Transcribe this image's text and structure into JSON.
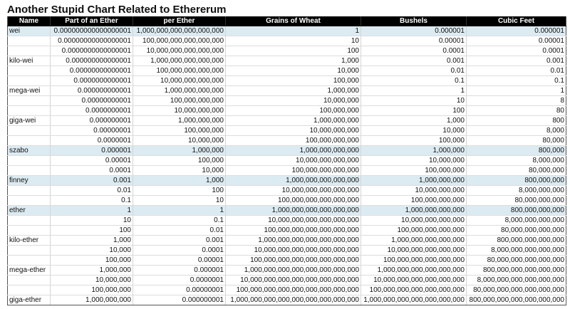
{
  "title": "Another Stupid Chart Related to Ethererum",
  "table": {
    "columns": [
      "Name",
      "Part of an Ether",
      "per Ether",
      "Grains of Wheat",
      "Bushels",
      "Cubic Feet"
    ],
    "rows": [
      {
        "name": "wei",
        "part": "0.000000000000000001",
        "per": "1,000,000,000,000,000,000",
        "grains": "1",
        "bushels": "0.000001",
        "cubic": "0.000001",
        "highlight": true
      },
      {
        "name": "",
        "part": "0.00000000000000001",
        "per": "100,000,000,000,000,000",
        "grains": "10",
        "bushels": "0.00001",
        "cubic": "0.00001",
        "highlight": false
      },
      {
        "name": "",
        "part": "0.0000000000000001",
        "per": "10,000,000,000,000,000",
        "grains": "100",
        "bushels": "0.0001",
        "cubic": "0.0001",
        "highlight": false
      },
      {
        "name": "kilo-wei",
        "part": "0.000000000000001",
        "per": "1,000,000,000,000,000",
        "grains": "1,000",
        "bushels": "0.001",
        "cubic": "0.001",
        "highlight": false
      },
      {
        "name": "",
        "part": "0.00000000000001",
        "per": "100,000,000,000,000",
        "grains": "10,000",
        "bushels": "0.01",
        "cubic": "0.01",
        "highlight": false
      },
      {
        "name": "",
        "part": "0.0000000000001",
        "per": "10,000,000,000,000",
        "grains": "100,000",
        "bushels": "0.1",
        "cubic": "0.1",
        "highlight": false
      },
      {
        "name": "mega-wei",
        "part": "0.000000000001",
        "per": "1,000,000,000,000",
        "grains": "1,000,000",
        "bushels": "1",
        "cubic": "1",
        "highlight": false
      },
      {
        "name": "",
        "part": "0.00000000001",
        "per": "100,000,000,000",
        "grains": "10,000,000",
        "bushels": "10",
        "cubic": "8",
        "highlight": false
      },
      {
        "name": "",
        "part": "0.0000000001",
        "per": "10,000,000,000",
        "grains": "100,000,000",
        "bushels": "100",
        "cubic": "80",
        "highlight": false
      },
      {
        "name": "giga-wei",
        "part": "0.000000001",
        "per": "1,000,000,000",
        "grains": "1,000,000,000",
        "bushels": "1,000",
        "cubic": "800",
        "highlight": false
      },
      {
        "name": "",
        "part": "0.00000001",
        "per": "100,000,000",
        "grains": "10,000,000,000",
        "bushels": "10,000",
        "cubic": "8,000",
        "highlight": false
      },
      {
        "name": "",
        "part": "0.0000001",
        "per": "10,000,000",
        "grains": "100,000,000,000",
        "bushels": "100,000",
        "cubic": "80,000",
        "highlight": false
      },
      {
        "name": "szabo",
        "part": "0.000001",
        "per": "1,000,000",
        "grains": "1,000,000,000,000",
        "bushels": "1,000,000",
        "cubic": "800,000",
        "highlight": true
      },
      {
        "name": "",
        "part": "0.00001",
        "per": "100,000",
        "grains": "10,000,000,000,000",
        "bushels": "10,000,000",
        "cubic": "8,000,000",
        "highlight": false
      },
      {
        "name": "",
        "part": "0.0001",
        "per": "10,000",
        "grains": "100,000,000,000,000",
        "bushels": "100,000,000",
        "cubic": "80,000,000",
        "highlight": false
      },
      {
        "name": "finney",
        "part": "0.001",
        "per": "1,000",
        "grains": "1,000,000,000,000,000",
        "bushels": "1,000,000,000",
        "cubic": "800,000,000",
        "highlight": true
      },
      {
        "name": "",
        "part": "0.01",
        "per": "100",
        "grains": "10,000,000,000,000,000",
        "bushels": "10,000,000,000",
        "cubic": "8,000,000,000",
        "highlight": false
      },
      {
        "name": "",
        "part": "0.1",
        "per": "10",
        "grains": "100,000,000,000,000,000",
        "bushels": "100,000,000,000",
        "cubic": "80,000,000,000",
        "highlight": false
      },
      {
        "name": "ether",
        "part": "1",
        "per": "1",
        "grains": "1,000,000,000,000,000,000",
        "bushels": "1,000,000,000,000",
        "cubic": "800,000,000,000",
        "highlight": true
      },
      {
        "name": "",
        "part": "10",
        "per": "0.1",
        "grains": "10,000,000,000,000,000,000",
        "bushels": "10,000,000,000,000",
        "cubic": "8,000,000,000,000",
        "highlight": false
      },
      {
        "name": "",
        "part": "100",
        "per": "0.01",
        "grains": "100,000,000,000,000,000,000",
        "bushels": "100,000,000,000,000",
        "cubic": "80,000,000,000,000",
        "highlight": false
      },
      {
        "name": "kilo-ether",
        "part": "1,000",
        "per": "0.001",
        "grains": "1,000,000,000,000,000,000,000",
        "bushels": "1,000,000,000,000,000",
        "cubic": "800,000,000,000,000",
        "highlight": false
      },
      {
        "name": "",
        "part": "10,000",
        "per": "0.0001",
        "grains": "10,000,000,000,000,000,000,000",
        "bushels": "10,000,000,000,000,000",
        "cubic": "8,000,000,000,000,000",
        "highlight": false
      },
      {
        "name": "",
        "part": "100,000",
        "per": "0.00001",
        "grains": "100,000,000,000,000,000,000,000",
        "bushels": "100,000,000,000,000,000",
        "cubic": "80,000,000,000,000,000",
        "highlight": false
      },
      {
        "name": "mega-ether",
        "part": "1,000,000",
        "per": "0.000001",
        "grains": "1,000,000,000,000,000,000,000,000",
        "bushels": "1,000,000,000,000,000,000",
        "cubic": "800,000,000,000,000,000",
        "highlight": false
      },
      {
        "name": "",
        "part": "10,000,000",
        "per": "0.0000001",
        "grains": "10,000,000,000,000,000,000,000,000",
        "bushels": "10,000,000,000,000,000,000",
        "cubic": "8,000,000,000,000,000,000",
        "highlight": false
      },
      {
        "name": "",
        "part": "100,000,000",
        "per": "0.00000001",
        "grains": "100,000,000,000,000,000,000,000,000",
        "bushels": "100,000,000,000,000,000,000",
        "cubic": "80,000,000,000,000,000,000",
        "highlight": false
      },
      {
        "name": "giga-ether",
        "part": "1,000,000,000",
        "per": "0.000000001",
        "grains": "1,000,000,000,000,000,000,000,000,000",
        "bushels": "1,000,000,000,000,000,000,000",
        "cubic": "800,000,000,000,000,000,000",
        "highlight": false
      }
    ]
  }
}
